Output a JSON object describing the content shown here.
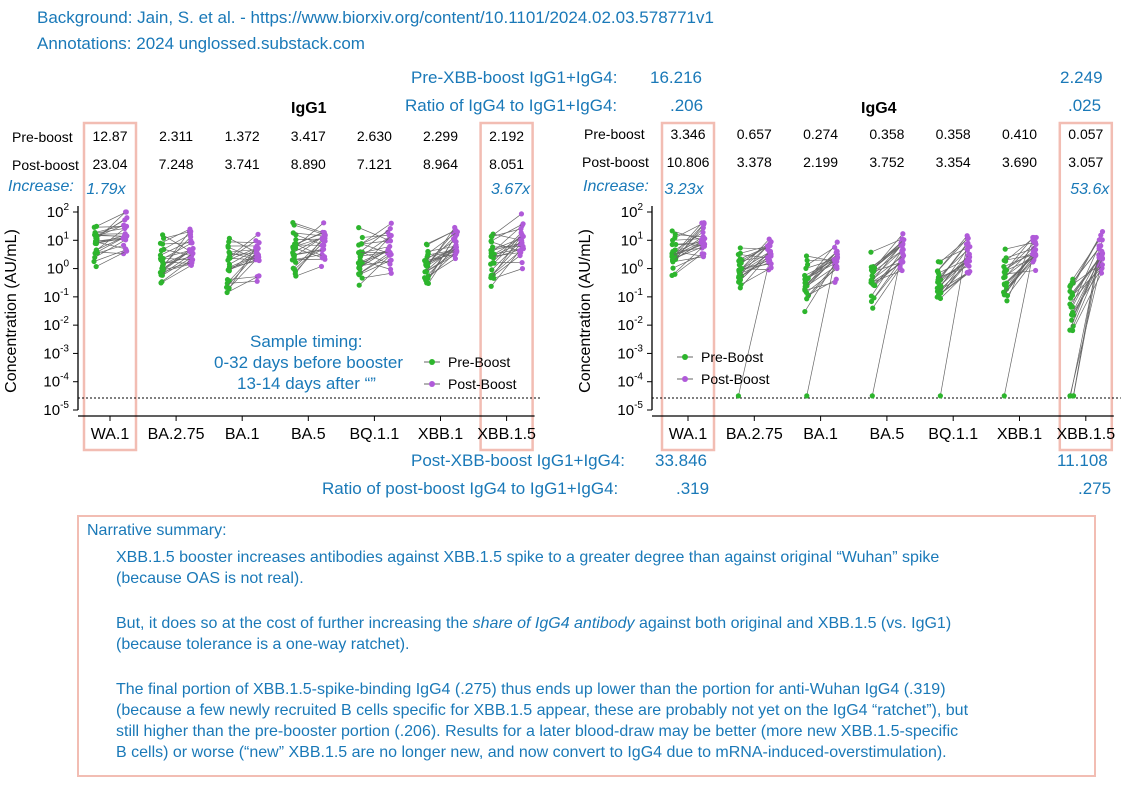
{
  "background_line": "Background: Jain, S. et al. - https://www.biorxiv.org/content/10.1101/2024.02.03.578771v1",
  "annotations_line": "Annotations: 2024 unglossed.substack.com",
  "top_labels": {
    "pre_boost_total_label": "Pre-XBB-boost IgG1+IgG4:",
    "pre_boost_total_wa1": "16.216",
    "pre_boost_total_xbb": "2.249",
    "ratio_label": "Ratio of IgG4 to IgG1+IgG4:",
    "ratio_wa1": ".206",
    "ratio_xbb": ".025"
  },
  "bottom_labels": {
    "post_boost_total_label": "Post-XBB-boost IgG1+IgG4:",
    "post_boost_total_wa1": "33.846",
    "post_boost_total_xbb": "11.108",
    "post_ratio_label": "Ratio of post-boost IgG4 to IgG1+IgG4:",
    "post_ratio_wa1": ".319",
    "post_ratio_xbb": ".275"
  },
  "row_labels": {
    "pre": "Pre-boost",
    "post": "Post-boost",
    "increase": "Increase:"
  },
  "y_axis_label": "Concentration (AU/mL)",
  "sample_timing": {
    "title": "Sample timing:",
    "pre_text": "0-32 days before booster",
    "post_text": "13-14 days after “”"
  },
  "legend": {
    "pre": "Pre-Boost",
    "post": "Post-Boost"
  },
  "colors": {
    "pre": "#2db52d",
    "post": "#b05ad9",
    "highlight": "#f2bdb3",
    "annotation": "#1a79b8"
  },
  "chart_data": [
    {
      "type": "scatter",
      "title": "IgG1",
      "ylabel": "Concentration (AU/mL)",
      "scale": "log",
      "ylim": [
        1e-05,
        100
      ],
      "categories": [
        "WA.1",
        "BA.2.75",
        "BA.1",
        "BA.5",
        "BQ.1.1",
        "XBB.1",
        "XBB.1.5"
      ],
      "series": [
        {
          "name": "Pre-Boost",
          "values": [
            12.87,
            2.311,
            1.372,
            3.417,
            2.63,
            2.299,
            2.192
          ]
        },
        {
          "name": "Post-Boost",
          "values": [
            23.04,
            7.248,
            3.741,
            8.89,
            7.121,
            8.964,
            8.051
          ]
        }
      ],
      "pre_text": [
        "12.87",
        "2.311",
        "1.372",
        "3.417",
        "2.630",
        "2.299",
        "2.192"
      ],
      "post_text": [
        "23.04",
        "7.248",
        "3.741",
        "8.890",
        "7.121",
        "8.964",
        "8.051"
      ],
      "increase_text": [
        "1.79x",
        "",
        "",
        "",
        "",
        "",
        "3.67x"
      ],
      "legend": "right-middle",
      "limit_of_detection_line": true
    },
    {
      "type": "scatter",
      "title": "IgG4",
      "ylabel": "Concentration (AU/mL)",
      "scale": "log",
      "ylim": [
        1e-05,
        100
      ],
      "categories": [
        "WA.1",
        "BA.2.75",
        "BA.1",
        "BA.5",
        "BQ.1.1",
        "XBB.1",
        "XBB.1.5"
      ],
      "series": [
        {
          "name": "Pre-Boost",
          "values": [
            3.346,
            0.657,
            0.274,
            0.358,
            0.358,
            0.41,
            0.057
          ]
        },
        {
          "name": "Post-Boost",
          "values": [
            10.806,
            3.378,
            2.199,
            3.752,
            3.354,
            3.69,
            3.057
          ]
        }
      ],
      "pre_text": [
        "3.346",
        "0.657",
        "0.274",
        "0.358",
        "0.358",
        "0.410",
        "0.057"
      ],
      "post_text": [
        "10.806",
        "3.378",
        "2.199",
        "3.752",
        "3.354",
        "3.690",
        "3.057"
      ],
      "increase_text": [
        "3.23x",
        "",
        "",
        "",
        "",
        "",
        "53.6x"
      ],
      "legend": "bottom-left",
      "limit_of_detection_line": true
    }
  ],
  "summary": {
    "heading": "Narrative summary:",
    "p1_l1": "XBB.1.5 booster increases antibodies against XBB.1.5 spike to a greater degree than against original “Wuhan” spike",
    "p1_l2": "(because OAS is not real).",
    "p2_l1_a": "But, it does so at the cost of further increasing the ",
    "p2_l1_em": "share of IgG4 antibody",
    "p2_l1_b": " against both original and XBB.1.5 (vs. IgG1)",
    "p2_l2": "(because tolerance is a one-way ratchet).",
    "p3_l1": "The final portion of XBB.1.5-spike-binding IgG4 (.275) thus ends up lower than the portion for anti-Wuhan IgG4 (.319)",
    "p3_l2": "(because a few newly recruited B cells specific for XBB.1.5 appear, these are probably not yet on the IgG4 “ratchet”), but",
    "p3_l3": "still higher than the pre-booster portion (.206). Results for a later blood-draw may be better (more new XBB.1.5-specific",
    "p3_l4": "B cells) or worse (“new” XBB.1.5 are no longer new, and now convert to IgG4 due to mRNA-induced-overstimulation)."
  }
}
